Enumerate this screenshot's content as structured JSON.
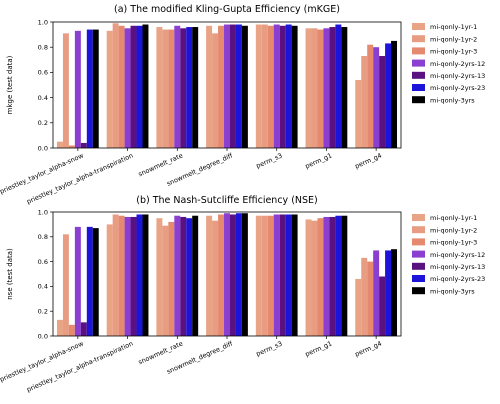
{
  "chart_data": [
    {
      "type": "bar",
      "title": "(a) The modified Kling-Gupta Efficiency (mKGE)",
      "ylabel": "mkge (test data)",
      "xlabel": "",
      "ylim": [
        0,
        1.0
      ],
      "yticks": [
        "0.0",
        "0.2",
        "0.4",
        "0.6",
        "0.8",
        "1.0"
      ],
      "grid": false,
      "legend_position": "right",
      "categories": [
        "priestley_taylor_alpha-snow",
        "priestley_taylor_alpha-transpiration",
        "snowmelt_rate",
        "snowmelt_degree_diff",
        "perm_s3",
        "perm_g1",
        "perm_g4"
      ],
      "series": [
        {
          "name": "mi-qonly-1yr-1",
          "color": "#e9a385",
          "values": [
            0.05,
            0.93,
            0.96,
            0.97,
            0.98,
            0.95,
            0.54
          ]
        },
        {
          "name": "mi-qonly-1yr-2",
          "color": "#e89d83",
          "values": [
            0.91,
            0.99,
            0.94,
            0.91,
            0.98,
            0.95,
            0.73
          ]
        },
        {
          "name": "mi-qonly-1yr-3",
          "color": "#e58a6f",
          "values": [
            0.02,
            0.97,
            0.94,
            0.97,
            0.97,
            0.94,
            0.82
          ]
        },
        {
          "name": "mi-qonly-2yrs-12",
          "color": "#8a3fd1",
          "values": [
            0.93,
            0.95,
            0.97,
            0.98,
            0.98,
            0.95,
            0.8
          ]
        },
        {
          "name": "mi-qonly-2yrs-13",
          "color": "#5a1280",
          "values": [
            0.04,
            0.97,
            0.95,
            0.98,
            0.97,
            0.96,
            0.73
          ]
        },
        {
          "name": "mi-qonly-2yrs-23",
          "color": "#1c14d8",
          "values": [
            0.94,
            0.97,
            0.96,
            0.98,
            0.98,
            0.98,
            0.83
          ]
        },
        {
          "name": "mi-qonly-3yrs",
          "color": "#000000",
          "values": [
            0.94,
            0.98,
            0.96,
            0.97,
            0.97,
            0.96,
            0.85
          ]
        }
      ]
    },
    {
      "type": "bar",
      "title": "(b) The Nash-Sutcliffe Efficiency (NSE)",
      "ylabel": "nse (test data)",
      "xlabel": "",
      "ylim": [
        0,
        1.0
      ],
      "yticks": [
        "0.0",
        "0.2",
        "0.4",
        "0.6",
        "0.8",
        "1.0"
      ],
      "grid": false,
      "legend_position": "right",
      "categories": [
        "priestley_taylor_alpha-snow",
        "priestley_taylor_alpha-transpiration",
        "snowmelt_rate",
        "snowmelt_degree_diff",
        "perm_s3",
        "perm_g1",
        "perm_g4"
      ],
      "series": [
        {
          "name": "mi-qonly-1yr-1",
          "color": "#e9a385",
          "values": [
            0.13,
            0.9,
            0.95,
            0.97,
            0.97,
            0.94,
            0.46
          ]
        },
        {
          "name": "mi-qonly-1yr-2",
          "color": "#e89d83",
          "values": [
            0.82,
            0.98,
            0.89,
            0.93,
            0.97,
            0.93,
            0.63
          ]
        },
        {
          "name": "mi-qonly-1yr-3",
          "color": "#e58a6f",
          "values": [
            0.09,
            0.97,
            0.92,
            0.98,
            0.97,
            0.95,
            0.6
          ]
        },
        {
          "name": "mi-qonly-2yrs-12",
          "color": "#8a3fd1",
          "values": [
            0.88,
            0.96,
            0.97,
            0.99,
            0.98,
            0.96,
            0.69
          ]
        },
        {
          "name": "mi-qonly-2yrs-13",
          "color": "#5a1280",
          "values": [
            0.11,
            0.96,
            0.96,
            0.98,
            0.98,
            0.96,
            0.48
          ]
        },
        {
          "name": "mi-qonly-2yrs-23",
          "color": "#1c14d8",
          "values": [
            0.88,
            0.98,
            0.95,
            0.99,
            0.98,
            0.97,
            0.69
          ]
        },
        {
          "name": "mi-qonly-3yrs",
          "color": "#000000",
          "values": [
            0.87,
            0.98,
            0.97,
            0.99,
            0.98,
            0.97,
            0.7
          ]
        }
      ]
    }
  ]
}
